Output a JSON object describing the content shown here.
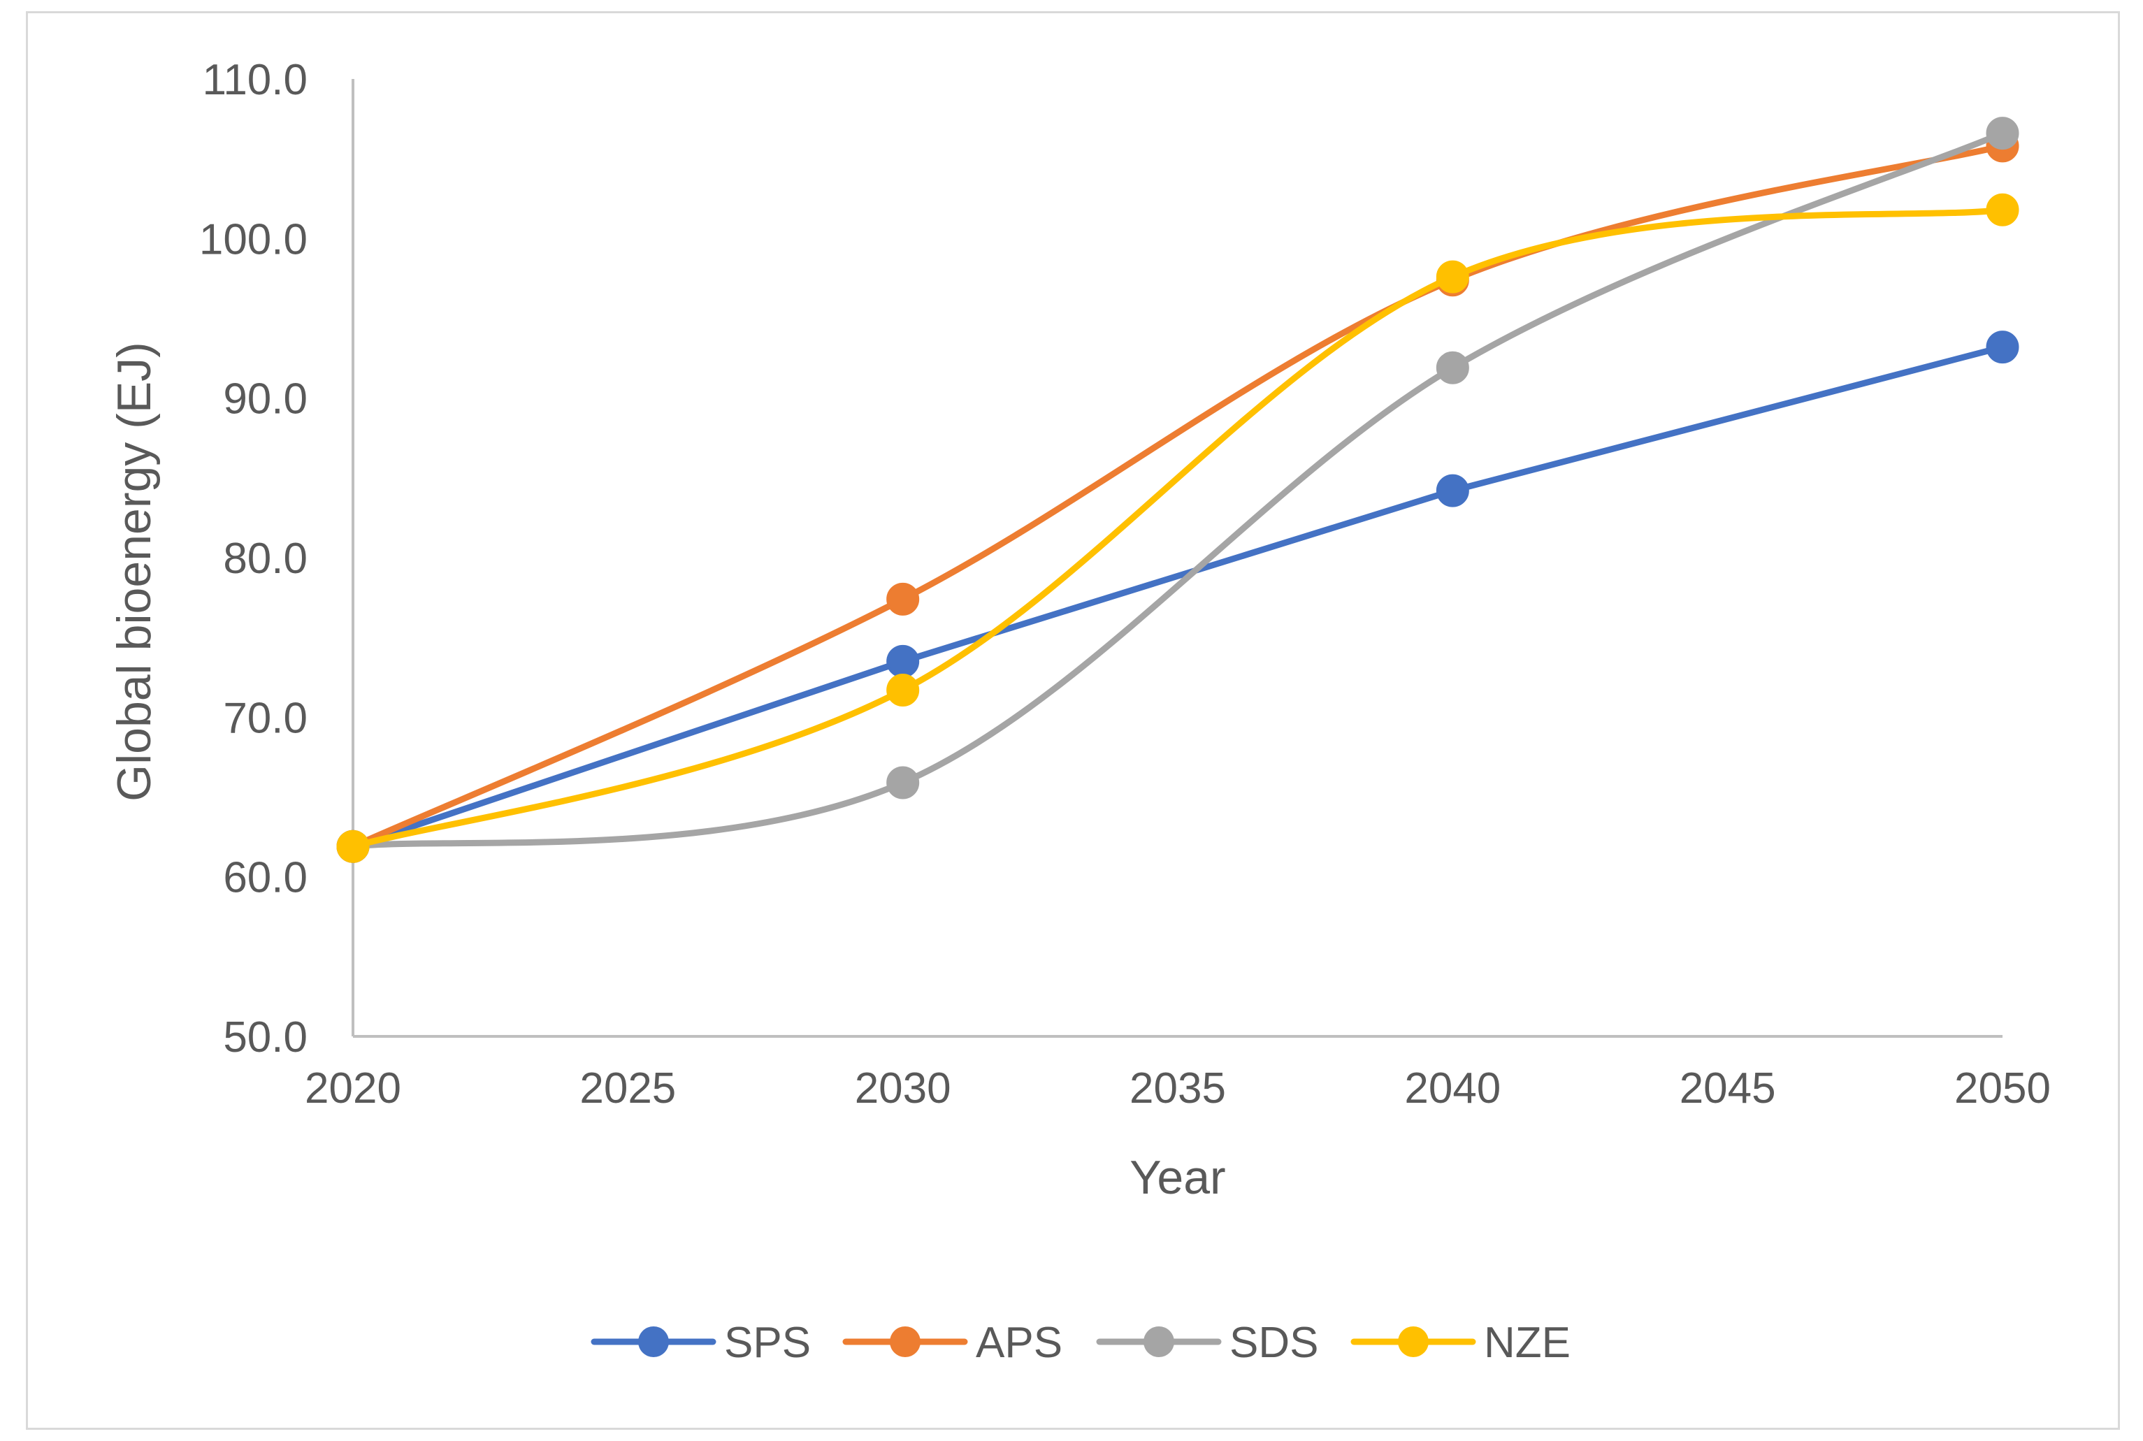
{
  "chart_data": {
    "type": "line",
    "title": "",
    "xlabel": "Year",
    "ylabel": "Global bioenergy (EJ)",
    "x": [
      2020,
      2030,
      2040,
      2050
    ],
    "xlim": [
      2020,
      2050
    ],
    "xticks": [
      "2020",
      "2025",
      "2030",
      "2035",
      "2040",
      "2045",
      "2050"
    ],
    "ylim": [
      50,
      110
    ],
    "yticks": [
      "50.0",
      "60.0",
      "70.0",
      "80.0",
      "90.0",
      "100.0",
      "110.0"
    ],
    "grid": false,
    "legend_position": "bottom",
    "smooth": true,
    "series": [
      {
        "name": "SPS",
        "color": "#4472c4",
        "smooth": false,
        "values": [
          61.9,
          73.5,
          84.2,
          93.2
        ]
      },
      {
        "name": "APS",
        "color": "#ed7d31",
        "smooth": true,
        "values": [
          61.9,
          77.4,
          97.4,
          105.8
        ]
      },
      {
        "name": "SDS",
        "color": "#a5a5a5",
        "smooth": true,
        "values": [
          61.9,
          65.9,
          91.9,
          106.6
        ]
      },
      {
        "name": "NZE",
        "color": "#ffc000",
        "smooth": true,
        "values": [
          61.9,
          71.7,
          97.6,
          101.8
        ]
      }
    ]
  }
}
